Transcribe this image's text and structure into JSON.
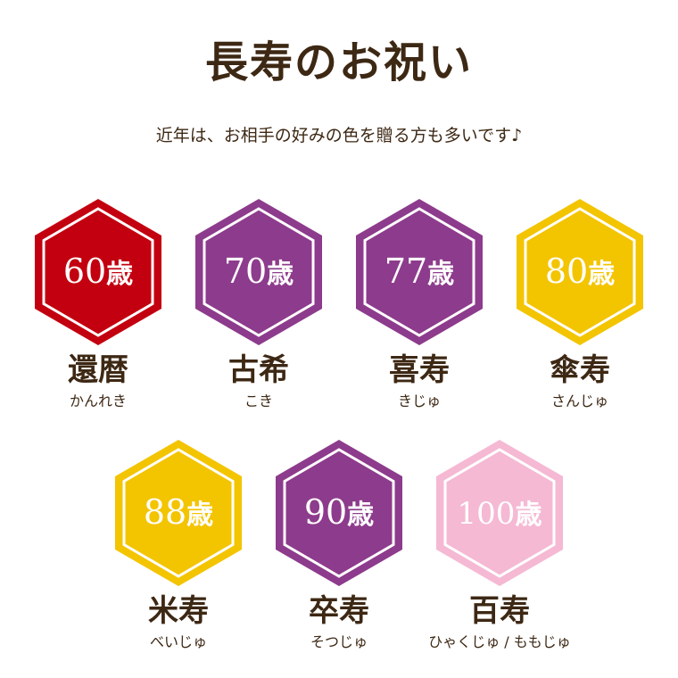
{
  "title": "長寿のお祝い",
  "subtitle": "近年は、お相手の好みの色を贈る方も多いです♪",
  "age_suffix": "歳",
  "items": [
    {
      "age": "60",
      "name": "還暦",
      "reading": "かんれき",
      "color": "#c3000f"
    },
    {
      "age": "70",
      "name": "古希",
      "reading": "こき",
      "color": "#8d3b8c"
    },
    {
      "age": "77",
      "name": "喜寿",
      "reading": "きじゅ",
      "color": "#8d3b8c"
    },
    {
      "age": "80",
      "name": "傘寿",
      "reading": "さんじゅ",
      "color": "#f3c400"
    },
    {
      "age": "88",
      "name": "米寿",
      "reading": "べいじゅ",
      "color": "#f3c400"
    },
    {
      "age": "90",
      "name": "卒寿",
      "reading": "そつじゅ",
      "color": "#8d3b8c"
    },
    {
      "age": "100",
      "name": "百寿",
      "reading": "ひゃくじゅ / ももじゅ",
      "color": "#f5b9d4"
    }
  ]
}
